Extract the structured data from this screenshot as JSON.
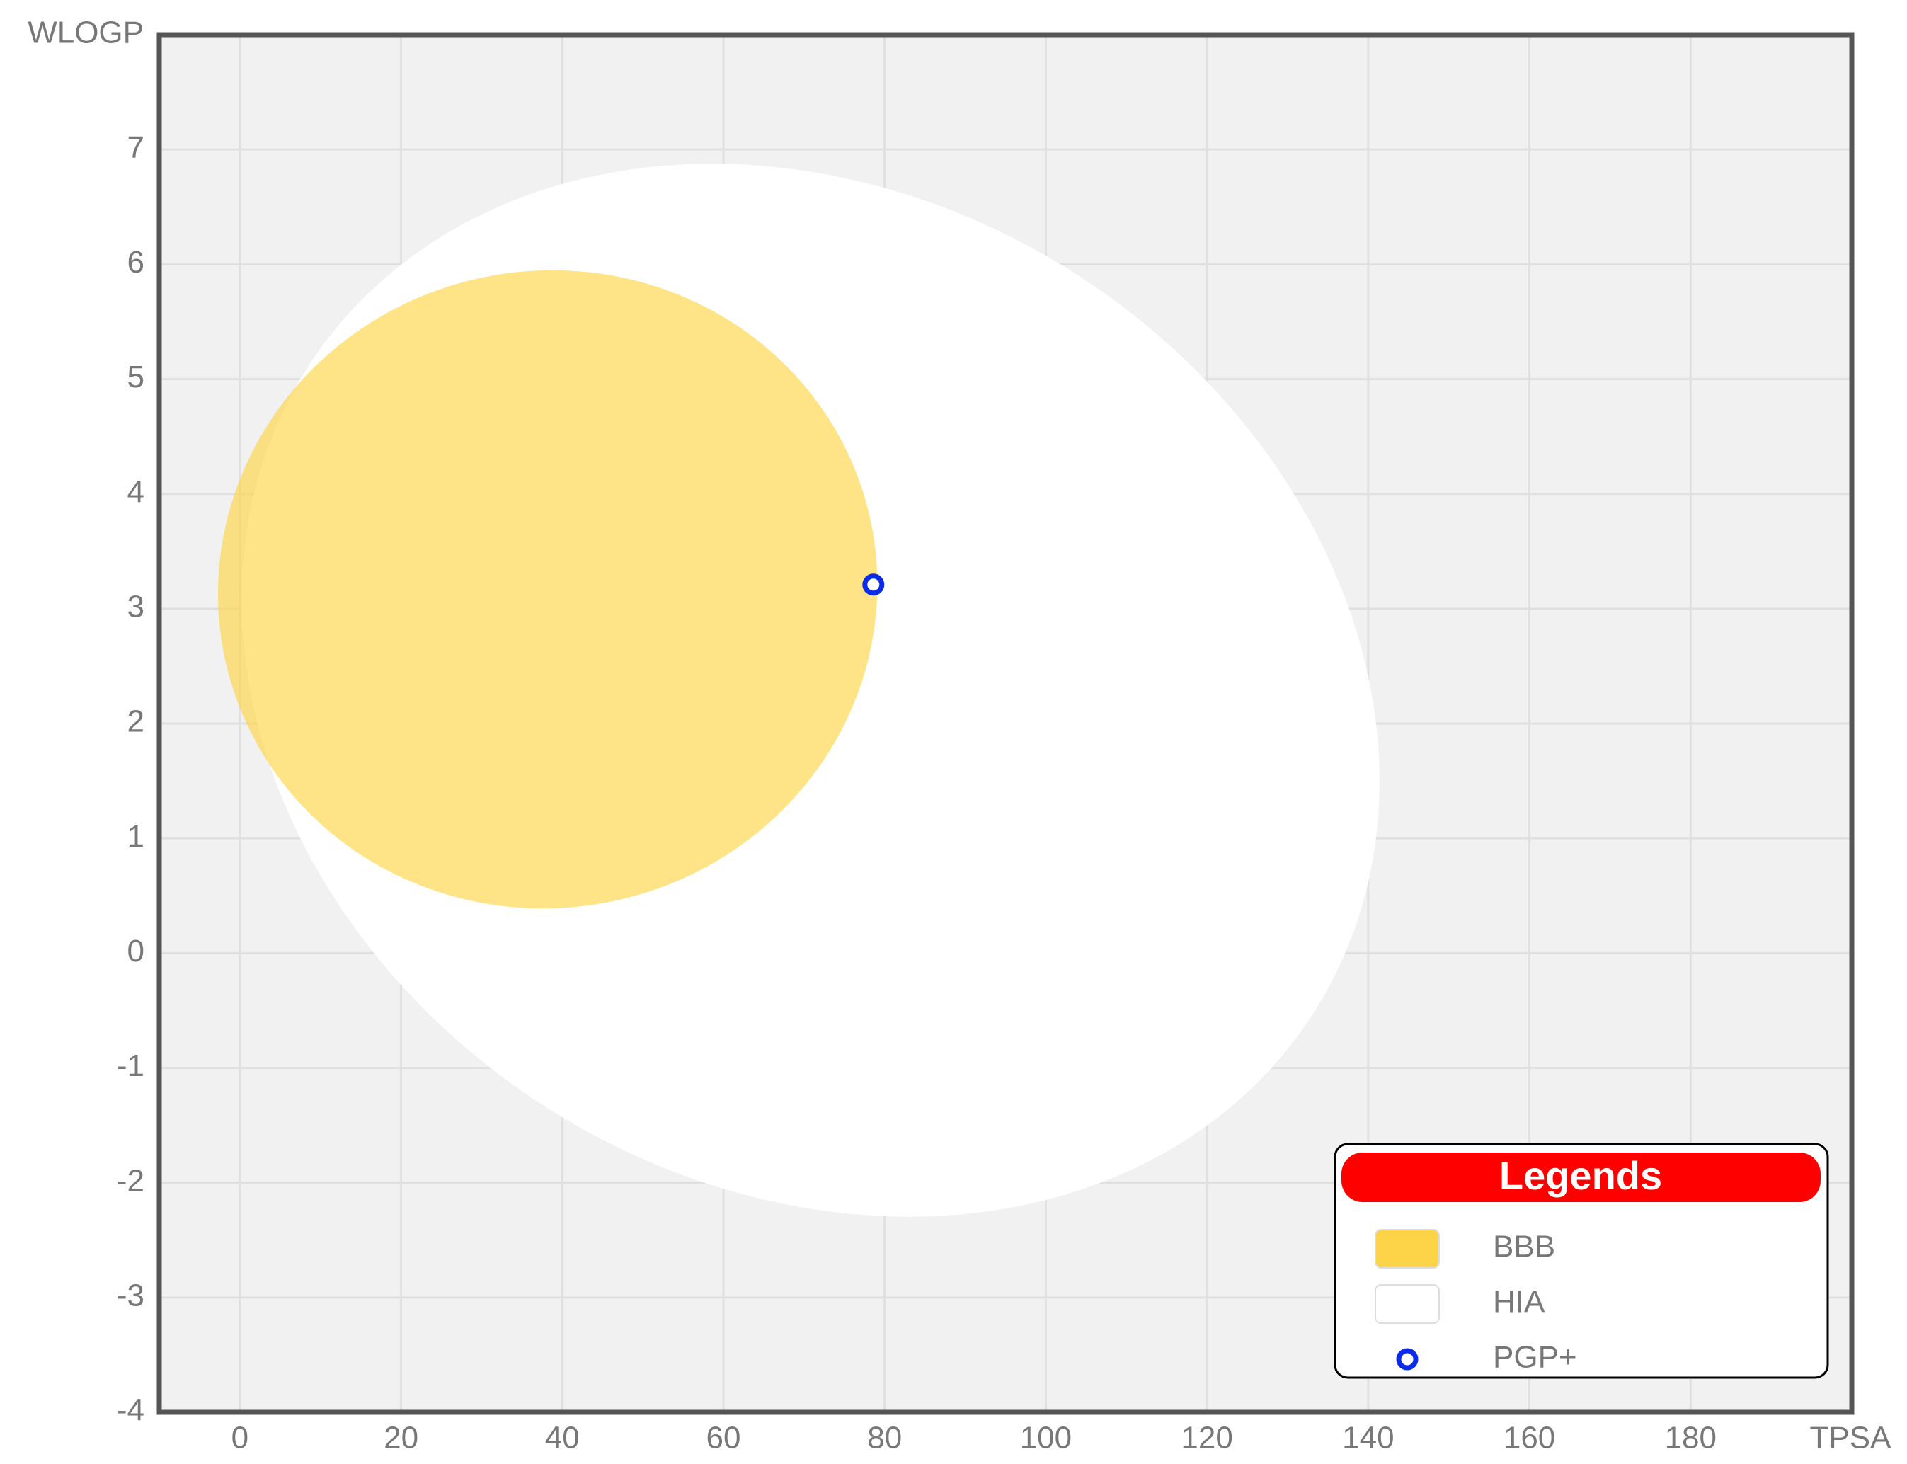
{
  "chart_data": {
    "type": "scatter",
    "x_label": "TPSA",
    "y_label": "WLOGP",
    "xlim": [
      -10,
      200
    ],
    "ylim": [
      -4,
      8
    ],
    "xticks": [
      0,
      20,
      40,
      60,
      80,
      100,
      120,
      140,
      160,
      180
    ],
    "yticks": [
      -4,
      -3,
      -2,
      -1,
      0,
      1,
      2,
      3,
      4,
      5,
      6,
      7
    ],
    "grid": true,
    "regions": [
      {
        "name": "BBB",
        "color": "#fdd447"
      },
      {
        "name": "HIA",
        "color": "#ffffff"
      }
    ],
    "series": [
      {
        "name": "PGP+",
        "color": "#0a2be8",
        "x": [
          78.6
        ],
        "values": [
          3.21
        ]
      }
    ],
    "legend_title": "Legends",
    "legend": "lower right"
  }
}
